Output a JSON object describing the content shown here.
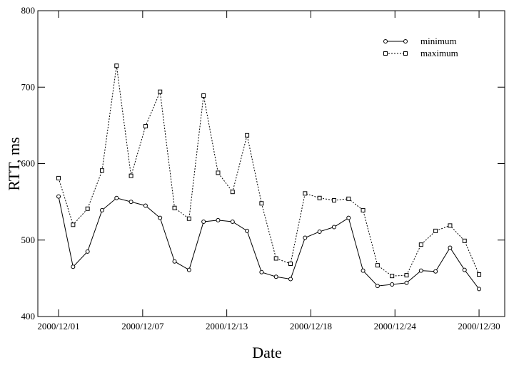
{
  "chart_data": {
    "type": "line",
    "xlabel": "Date",
    "ylabel": "RTT, ms",
    "x": [
      0,
      1,
      2,
      3,
      4,
      5,
      6,
      7,
      8,
      9,
      10,
      11,
      12,
      13,
      14,
      15,
      16,
      17,
      18,
      19,
      20,
      21,
      22,
      23,
      24,
      25,
      26,
      27,
      28,
      29
    ],
    "xlim": [
      -1.43,
      30.77
    ],
    "xticks": [
      {
        "value": 0,
        "label": "2000/12/01"
      },
      {
        "value": 5.8,
        "label": "2000/12/07"
      },
      {
        "value": 11.6,
        "label": "2000/12/13"
      },
      {
        "value": 17.4,
        "label": "2000/12/18"
      },
      {
        "value": 23.2,
        "label": "2000/12/24"
      },
      {
        "value": 29,
        "label": "2000/12/30"
      }
    ],
    "ylim": [
      400,
      800
    ],
    "yticks": [
      400,
      500,
      600,
      700,
      800
    ],
    "legend": "upper right",
    "series": [
      {
        "name": "minimum",
        "color": "#000000",
        "marker": "circle",
        "linestyle": "solid",
        "values": [
          557,
          465,
          485,
          539,
          555,
          550,
          545,
          529,
          472,
          461,
          524,
          526,
          524,
          512,
          458,
          452,
          449,
          503,
          511,
          517,
          529,
          460,
          440,
          442,
          444,
          460,
          459,
          490,
          461,
          436
        ]
      },
      {
        "name": "maximum",
        "color": "#000000",
        "marker": "square",
        "linestyle": "dotted",
        "values": [
          581,
          520,
          541,
          591,
          728,
          584,
          649,
          694,
          542,
          528,
          689,
          588,
          563,
          637,
          548,
          476,
          469,
          561,
          555,
          552,
          554,
          539,
          467,
          453,
          454,
          494,
          512,
          519,
          499,
          455
        ]
      }
    ]
  }
}
